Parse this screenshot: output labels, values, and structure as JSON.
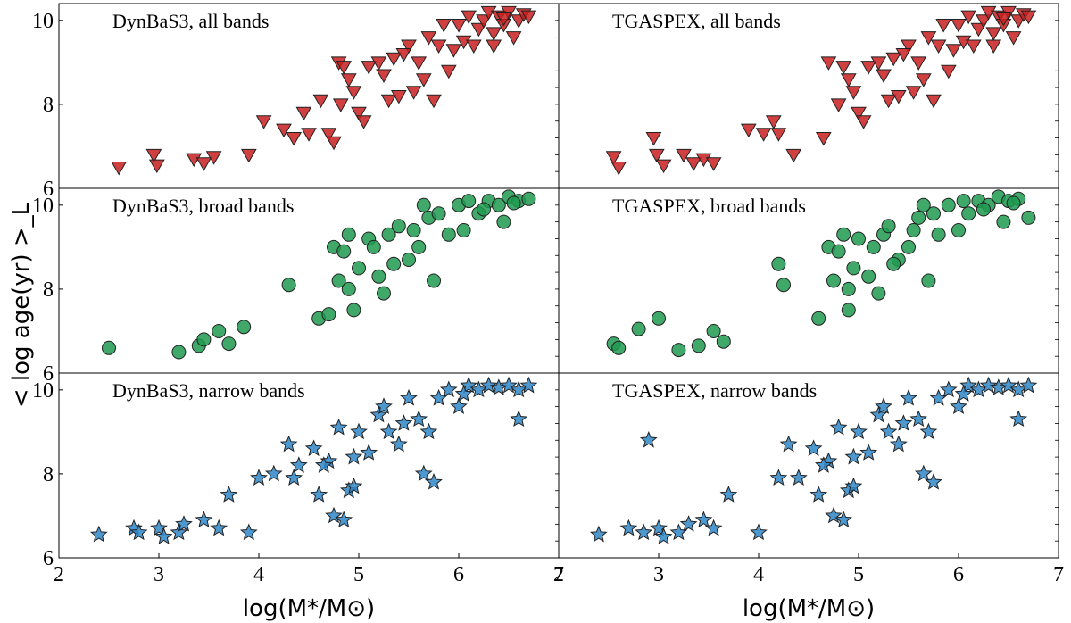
{
  "chart_data": {
    "type": "scatter",
    "ylabel": "< log age(yr) >_L",
    "xlabel": "log(M*/M⊙)",
    "xlim": [
      2,
      7
    ],
    "ylim": [
      6,
      10.4
    ],
    "xticks": [
      "2",
      "3",
      "4",
      "5",
      "6",
      "7"
    ],
    "yticks": [
      "6",
      "8",
      "10"
    ],
    "rows": [
      {
        "name": "all bands",
        "color": "#c81e1e",
        "marker": "triangle-down"
      },
      {
        "name": "broad bands",
        "color": "#1e9a50",
        "marker": "circle"
      },
      {
        "name": "narrow bands",
        "color": "#2f86c8",
        "marker": "star"
      }
    ],
    "panels": [
      {
        "title": "DynBaS3, all bands",
        "row": 0,
        "col": 0,
        "x": [
          2.6,
          2.95,
          2.98,
          3.35,
          3.45,
          3.55,
          3.9,
          4.05,
          4.25,
          4.35,
          4.45,
          4.5,
          4.62,
          4.7,
          4.75,
          4.8,
          4.82,
          4.9,
          4.95,
          5.0,
          5.05,
          5.1,
          5.2,
          5.3,
          5.35,
          5.4,
          5.5,
          5.6,
          5.65,
          5.7,
          5.75,
          5.8,
          5.9,
          6.0,
          6.05,
          6.1,
          6.15,
          6.2,
          6.25,
          6.3,
          6.35,
          6.4,
          6.45,
          6.5,
          6.55,
          6.6,
          6.65,
          6.7,
          4.85,
          5.25,
          5.45,
          5.55,
          5.85,
          5.95,
          6.35,
          6.45
        ],
        "y": [
          6.5,
          6.8,
          6.55,
          6.7,
          6.6,
          6.75,
          6.8,
          7.6,
          7.4,
          7.2,
          7.8,
          7.3,
          8.1,
          7.3,
          7.1,
          9.0,
          8.0,
          8.6,
          8.3,
          7.8,
          7.6,
          8.9,
          9.0,
          8.1,
          9.1,
          8.2,
          9.4,
          9.0,
          8.6,
          9.6,
          8.1,
          9.4,
          8.8,
          9.9,
          9.5,
          10.1,
          9.4,
          9.8,
          10.0,
          10.2,
          9.7,
          10.1,
          9.9,
          10.2,
          9.6,
          10.0,
          10.15,
          10.1,
          8.9,
          8.7,
          9.2,
          8.3,
          9.9,
          9.3,
          9.4,
          10.05
        ]
      },
      {
        "title": "TGASPEX, all bands",
        "row": 0,
        "col": 1,
        "x": [
          2.55,
          2.6,
          2.95,
          2.98,
          3.05,
          3.25,
          3.35,
          3.45,
          3.55,
          3.9,
          4.05,
          4.15,
          4.2,
          4.35,
          4.65,
          4.7,
          4.8,
          4.9,
          4.95,
          5.0,
          5.05,
          5.1,
          5.2,
          5.3,
          5.35,
          5.4,
          5.5,
          5.6,
          5.65,
          5.7,
          5.75,
          5.8,
          5.9,
          6.0,
          6.05,
          6.1,
          6.15,
          6.2,
          6.25,
          6.3,
          6.35,
          6.4,
          6.45,
          6.5,
          6.55,
          6.6,
          6.65,
          6.7,
          4.85,
          5.25,
          5.45,
          5.55,
          5.85,
          5.95,
          6.35,
          6.45
        ],
        "y": [
          6.75,
          6.5,
          7.2,
          6.8,
          6.55,
          6.8,
          6.6,
          6.7,
          6.6,
          7.4,
          7.3,
          7.6,
          7.3,
          6.8,
          7.2,
          9.0,
          8.0,
          8.6,
          8.3,
          7.8,
          7.6,
          8.9,
          9.0,
          8.1,
          9.1,
          8.2,
          9.4,
          9.0,
          8.6,
          9.6,
          8.1,
          9.4,
          8.8,
          9.9,
          9.5,
          10.1,
          9.4,
          9.8,
          10.0,
          10.2,
          9.7,
          10.1,
          9.9,
          10.2,
          9.6,
          10.0,
          10.15,
          10.1,
          8.9,
          8.7,
          9.2,
          8.3,
          9.9,
          9.3,
          9.4,
          10.05
        ]
      },
      {
        "title": "DynBaS3, broad bands",
        "row": 1,
        "col": 0,
        "x": [
          2.5,
          3.2,
          3.4,
          3.45,
          3.6,
          3.7,
          3.85,
          4.3,
          4.6,
          4.7,
          4.75,
          4.8,
          4.85,
          4.9,
          4.95,
          5.0,
          5.1,
          5.2,
          5.25,
          5.3,
          5.4,
          5.5,
          5.6,
          5.7,
          5.75,
          5.8,
          5.9,
          6.0,
          6.05,
          6.1,
          6.2,
          6.3,
          6.4,
          6.5,
          6.6,
          6.7,
          4.9,
          5.15,
          5.35,
          5.55,
          5.65,
          6.25,
          6.45,
          6.55
        ],
        "y": [
          6.6,
          6.5,
          6.65,
          6.8,
          7.0,
          6.7,
          7.1,
          8.1,
          7.3,
          7.4,
          9.0,
          8.2,
          8.9,
          9.3,
          7.5,
          8.5,
          9.2,
          8.3,
          7.9,
          9.3,
          9.5,
          8.7,
          9.0,
          9.7,
          8.2,
          9.8,
          9.3,
          10.0,
          9.4,
          10.1,
          9.8,
          10.1,
          10.0,
          10.2,
          10.1,
          10.15,
          8.0,
          9.0,
          8.6,
          9.4,
          10.0,
          9.9,
          9.6,
          10.05
        ]
      },
      {
        "title": "TGASPEX, broad bands",
        "row": 1,
        "col": 1,
        "x": [
          2.55,
          2.6,
          2.8,
          3.0,
          3.2,
          3.4,
          3.55,
          3.65,
          4.2,
          4.25,
          4.6,
          4.7,
          4.75,
          4.8,
          4.85,
          4.9,
          4.95,
          5.0,
          5.1,
          5.2,
          5.25,
          5.3,
          5.4,
          5.5,
          5.6,
          5.7,
          5.75,
          5.8,
          5.9,
          6.0,
          6.05,
          6.1,
          6.2,
          6.3,
          6.4,
          6.5,
          6.6,
          6.7,
          4.9,
          5.15,
          5.35,
          5.55,
          5.65,
          6.25,
          6.45,
          6.55
        ],
        "y": [
          6.7,
          6.6,
          7.05,
          7.3,
          6.55,
          6.65,
          7.0,
          6.75,
          8.6,
          8.1,
          7.3,
          9.0,
          8.2,
          8.9,
          9.3,
          7.5,
          8.5,
          9.2,
          8.3,
          7.9,
          9.3,
          9.5,
          8.7,
          9.0,
          9.7,
          8.2,
          9.8,
          9.3,
          10.0,
          9.4,
          10.1,
          9.8,
          10.1,
          10.0,
          10.2,
          10.1,
          10.15,
          9.7,
          8.0,
          9.0,
          8.6,
          9.4,
          10.0,
          9.9,
          9.6,
          10.05
        ]
      },
      {
        "title": "DynBaS3, narrow bands",
        "row": 2,
        "col": 0,
        "x": [
          2.4,
          2.75,
          2.8,
          3.0,
          3.05,
          3.2,
          3.25,
          3.45,
          3.6,
          3.7,
          3.9,
          4.0,
          4.15,
          4.3,
          4.35,
          4.4,
          4.55,
          4.6,
          4.7,
          4.75,
          4.8,
          4.85,
          4.9,
          4.95,
          5.0,
          5.1,
          5.2,
          5.3,
          5.4,
          5.5,
          5.6,
          5.7,
          5.8,
          5.9,
          6.0,
          6.1,
          6.2,
          6.3,
          6.4,
          6.5,
          6.6,
          6.7,
          4.65,
          4.95,
          5.25,
          5.45,
          5.65,
          5.75,
          6.05,
          6.6
        ],
        "y": [
          6.55,
          6.7,
          6.6,
          6.7,
          6.5,
          6.6,
          6.8,
          6.9,
          6.7,
          7.5,
          6.6,
          7.9,
          8.0,
          8.7,
          7.9,
          8.2,
          8.6,
          7.5,
          8.3,
          7.0,
          9.1,
          6.9,
          7.6,
          8.4,
          9.0,
          8.5,
          9.4,
          9.0,
          8.7,
          9.8,
          9.3,
          9.0,
          9.8,
          10.0,
          9.6,
          10.1,
          10.0,
          10.1,
          10.05,
          10.1,
          10.0,
          10.1,
          8.2,
          7.7,
          9.6,
          9.2,
          8.0,
          7.8,
          9.9,
          9.3
        ]
      },
      {
        "title": "TGASPEX, narrow bands",
        "row": 2,
        "col": 1,
        "x": [
          2.4,
          2.7,
          2.85,
          3.0,
          3.05,
          3.2,
          3.3,
          3.45,
          3.55,
          3.7,
          4.0,
          4.2,
          4.3,
          4.4,
          4.55,
          4.6,
          4.7,
          4.75,
          4.8,
          4.85,
          4.9,
          4.95,
          5.0,
          5.1,
          5.2,
          5.3,
          5.4,
          5.5,
          5.6,
          5.7,
          5.8,
          5.9,
          6.0,
          6.1,
          6.2,
          6.3,
          6.4,
          6.5,
          6.6,
          6.7,
          4.65,
          4.95,
          5.25,
          5.45,
          5.65,
          5.75,
          6.05,
          6.6,
          2.9
        ],
        "y": [
          6.55,
          6.7,
          6.6,
          6.7,
          6.5,
          6.6,
          6.8,
          6.9,
          6.7,
          7.5,
          6.6,
          7.9,
          8.7,
          7.9,
          8.6,
          7.5,
          8.3,
          7.0,
          9.1,
          6.9,
          7.6,
          8.4,
          9.0,
          8.5,
          9.4,
          9.0,
          8.7,
          9.8,
          9.3,
          9.0,
          9.8,
          10.0,
          9.6,
          10.1,
          10.0,
          10.1,
          10.05,
          10.1,
          10.0,
          10.1,
          8.2,
          7.7,
          9.6,
          9.2,
          8.0,
          7.8,
          9.9,
          9.3,
          8.8
        ]
      }
    ]
  }
}
